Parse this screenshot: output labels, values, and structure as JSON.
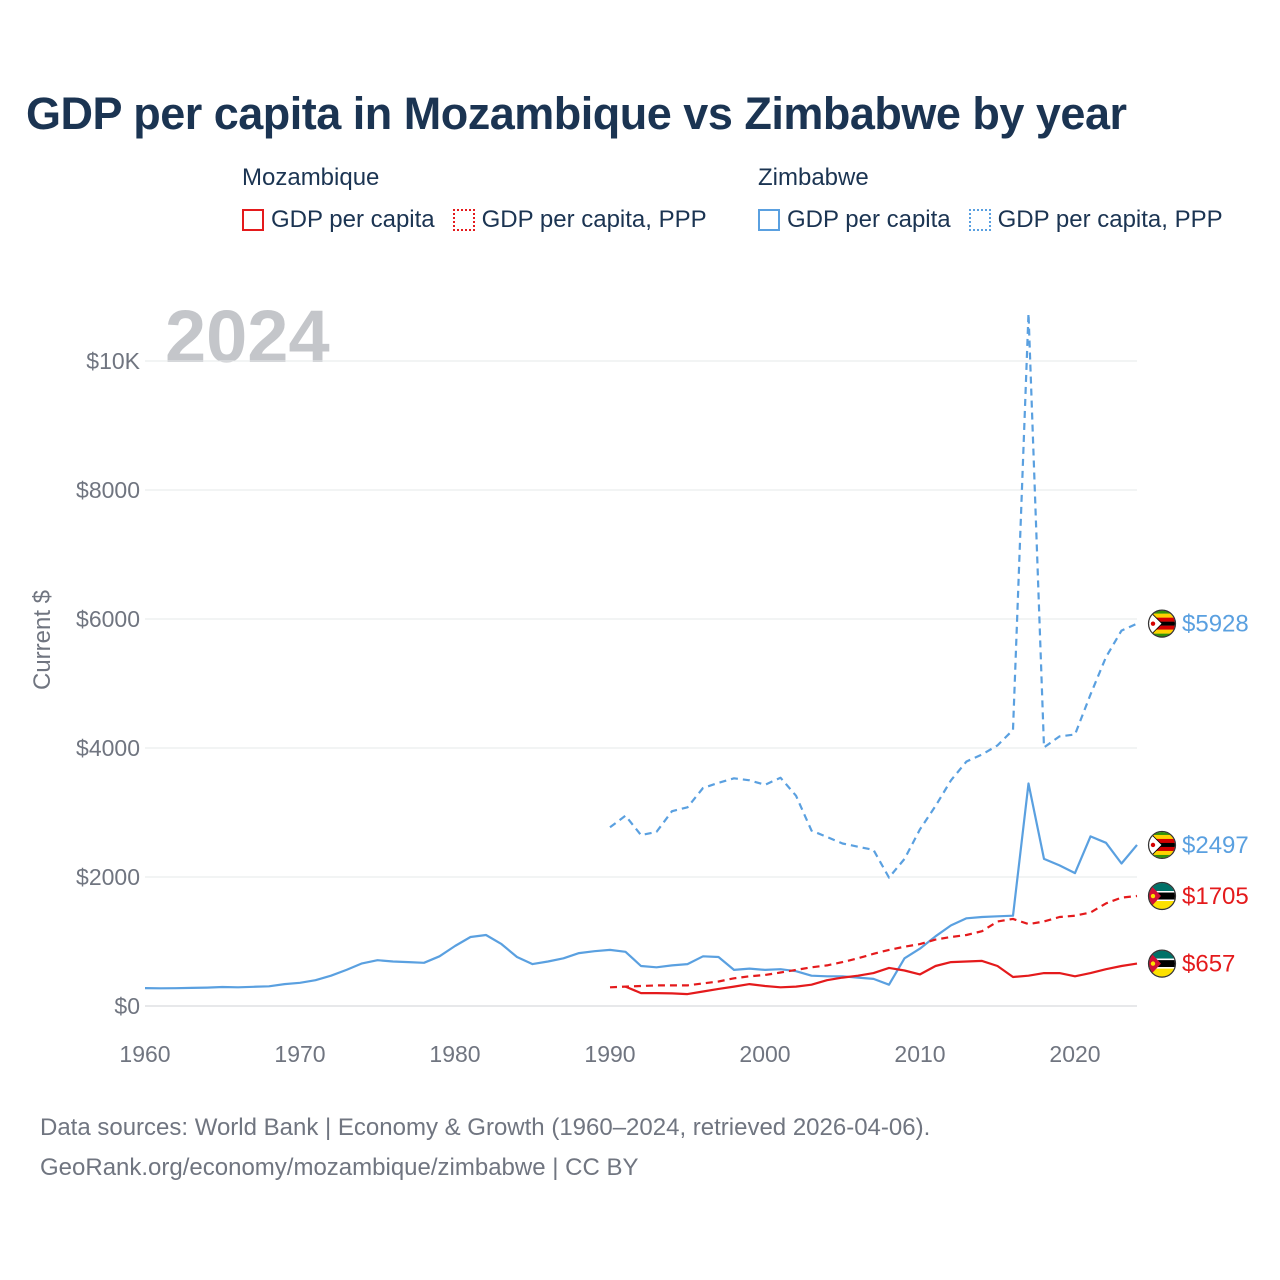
{
  "title": "GDP per capita in Mozambique vs Zimbabwe by year",
  "legend": {
    "groups": [
      {
        "name": "Mozambique",
        "color": "#e41a1c",
        "items": [
          {
            "label": "GDP per capita",
            "style": "solid"
          },
          {
            "label": "GDP per capita, PPP",
            "style": "dotted"
          }
        ]
      },
      {
        "name": "Zimbabwe",
        "color": "#5aa0e0",
        "items": [
          {
            "label": "GDP per capita",
            "style": "solid"
          },
          {
            "label": "GDP per capita, PPP",
            "style": "dotted"
          }
        ]
      }
    ]
  },
  "footer": {
    "line1": "Data sources: World Bank | Economy & Growth (1960–2024, retrieved 2026-04-06).",
    "line2": "GeoRank.org/economy/mozambique/zimbabwe | CC BY"
  },
  "chart_data": {
    "type": "line",
    "year_label": "2024",
    "ylabel": "Current $",
    "xlim": [
      1960,
      2024
    ],
    "ylim": [
      0,
      10000
    ],
    "grid": true,
    "x_ticks": [
      {
        "value": 1960,
        "label": "1960"
      },
      {
        "value": 1970,
        "label": "1970"
      },
      {
        "value": 1980,
        "label": "1980"
      },
      {
        "value": 1990,
        "label": "1990"
      },
      {
        "value": 2000,
        "label": "2000"
      },
      {
        "value": 2010,
        "label": "2010"
      },
      {
        "value": 2020,
        "label": "2020"
      }
    ],
    "y_ticks": [
      {
        "value": 0,
        "label": "$0"
      },
      {
        "value": 2000,
        "label": "$2000"
      },
      {
        "value": 4000,
        "label": "$4000"
      },
      {
        "value": 6000,
        "label": "$6000"
      },
      {
        "value": 8000,
        "label": "$8000"
      },
      {
        "value": 10000,
        "label": "$10K"
      }
    ],
    "series": [
      {
        "name": "Zimbabwe GDP per capita, PPP",
        "country": "Zimbabwe",
        "color": "#5aa0e0",
        "dash": "dash",
        "end_label": "$5928",
        "flag": "zimbabwe",
        "x": [
          1990,
          1991,
          1992,
          1993,
          1994,
          1995,
          1996,
          1997,
          1998,
          1999,
          2000,
          2001,
          2002,
          2003,
          2004,
          2005,
          2006,
          2007,
          2008,
          2009,
          2010,
          2011,
          2012,
          2013,
          2014,
          2015,
          2016,
          2017,
          2018,
          2019,
          2020,
          2021,
          2022,
          2023,
          2024
        ],
        "y": [
          2770,
          2950,
          2650,
          2700,
          3020,
          3080,
          3380,
          3460,
          3530,
          3500,
          3430,
          3540,
          3260,
          2720,
          2620,
          2520,
          2470,
          2420,
          1990,
          2280,
          2740,
          3100,
          3500,
          3790,
          3900,
          4040,
          4280,
          10740,
          4010,
          4180,
          4210,
          4830,
          5410,
          5820,
          5928
        ]
      },
      {
        "name": "Zimbabwe GDP per capita",
        "country": "Zimbabwe",
        "color": "#5aa0e0",
        "dash": "solid",
        "end_label": "$2497",
        "flag": "zimbabwe",
        "x": [
          1960,
          1961,
          1962,
          1963,
          1964,
          1965,
          1966,
          1967,
          1968,
          1969,
          1970,
          1971,
          1972,
          1973,
          1974,
          1975,
          1976,
          1977,
          1978,
          1979,
          1980,
          1981,
          1982,
          1983,
          1984,
          1985,
          1986,
          1987,
          1988,
          1989,
          1990,
          1991,
          1992,
          1993,
          1994,
          1995,
          1996,
          1997,
          1998,
          1999,
          2000,
          2001,
          2002,
          2003,
          2004,
          2005,
          2006,
          2007,
          2008,
          2009,
          2010,
          2011,
          2012,
          2013,
          2014,
          2015,
          2016,
          2017,
          2018,
          2019,
          2020,
          2021,
          2022,
          2023,
          2024
        ],
        "y": [
          278,
          275,
          276,
          280,
          285,
          295,
          290,
          298,
          305,
          340,
          360,
          400,
          470,
          560,
          660,
          710,
          690,
          680,
          670,
          770,
          930,
          1070,
          1100,
          960,
          760,
          650,
          690,
          740,
          820,
          850,
          870,
          840,
          620,
          600,
          630,
          650,
          770,
          760,
          560,
          580,
          560,
          570,
          540,
          470,
          460,
          460,
          440,
          420,
          330,
          740,
          890,
          1080,
          1250,
          1360,
          1380,
          1390,
          1400,
          3450,
          2280,
          2180,
          2060,
          2630,
          2530,
          2210,
          2497
        ]
      },
      {
        "name": "Mozambique GDP per capita, PPP",
        "country": "Mozambique",
        "color": "#e41a1c",
        "dash": "dash",
        "end_label": "$1705",
        "flag": "mozambique",
        "x": [
          1990,
          1991,
          1992,
          1993,
          1994,
          1995,
          1996,
          1997,
          1998,
          1999,
          2000,
          2001,
          2002,
          2003,
          2004,
          2005,
          2006,
          2007,
          2008,
          2009,
          2010,
          2011,
          2012,
          2013,
          2014,
          2015,
          2016,
          2017,
          2018,
          2019,
          2020,
          2021,
          2022,
          2023,
          2024
        ],
        "y": [
          290,
          300,
          310,
          320,
          320,
          320,
          350,
          380,
          430,
          460,
          480,
          520,
          560,
          600,
          630,
          680,
          740,
          810,
          870,
          920,
          960,
          1030,
          1070,
          1100,
          1160,
          1310,
          1350,
          1270,
          1310,
          1380,
          1400,
          1450,
          1590,
          1680,
          1705
        ]
      },
      {
        "name": "Mozambique GDP per capita",
        "country": "Mozambique",
        "color": "#e41a1c",
        "dash": "solid",
        "end_label": "$657",
        "flag": "mozambique",
        "x": [
          1991,
          1992,
          1993,
          1994,
          1995,
          1996,
          1997,
          1998,
          1999,
          2000,
          2001,
          2002,
          2003,
          2004,
          2005,
          2006,
          2007,
          2008,
          2009,
          2010,
          2011,
          2012,
          2013,
          2014,
          2015,
          2016,
          2017,
          2018,
          2019,
          2020,
          2021,
          2022,
          2023,
          2024
        ],
        "y": [
          300,
          200,
          200,
          195,
          185,
          225,
          265,
          300,
          340,
          310,
          290,
          300,
          330,
          400,
          440,
          470,
          510,
          590,
          550,
          490,
          620,
          680,
          690,
          700,
          620,
          450,
          470,
          510,
          510,
          460,
          510,
          570,
          620,
          657
        ]
      }
    ]
  }
}
